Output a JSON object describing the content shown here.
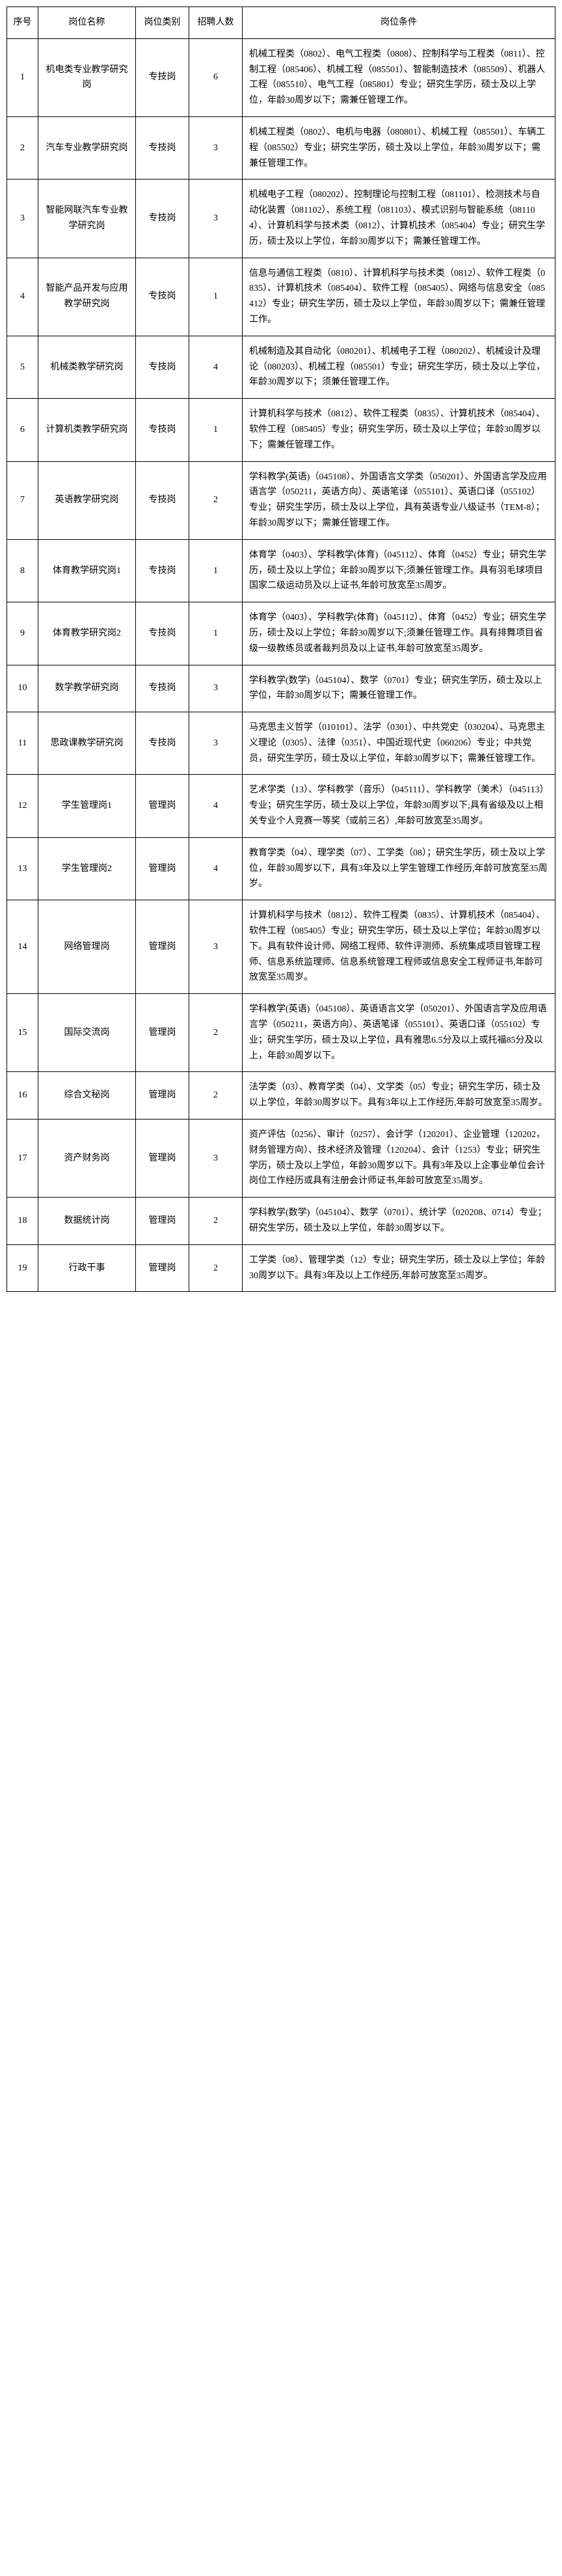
{
  "headers": {
    "seq": "序号",
    "name": "岗位名称",
    "category": "岗位类别",
    "count": "招聘人数",
    "requirements": "岗位条件"
  },
  "rows": [
    {
      "seq": "1",
      "name": "机电类专业教学研究岗",
      "category": "专技岗",
      "count": "6",
      "req": "机械工程类（0802）、电气工程类（0808）、控制科学与工程类（0811）、控制工程（085406）、机械工程（085501）、智能制造技术（085509）、机器人工程（085510）、电气工程（085801）专业；研究生学历，硕士及以上学位，年龄30周岁以下；需兼任管理工作。"
    },
    {
      "seq": "2",
      "name": "汽车专业教学研究岗",
      "category": "专技岗",
      "count": "3",
      "req": "机械工程类（0802）、电机与电器（080801）、机械工程（085501）、车辆工程（085502）专业；研究生学历，硕士及以上学位，年龄30周岁以下；需兼任管理工作。"
    },
    {
      "seq": "3",
      "name": "智能网联汽车专业教学研究岗",
      "category": "专技岗",
      "count": "3",
      "req": "机械电子工程（080202）、控制理论与控制工程（081101）、检测技术与自动化装置（081102）、系统工程（081103）、模式识别与智能系统（081104）、计算机科学与技术类（0812）、计算机技术（085404）专业；研究生学历，硕士及以上学位，年龄30周岁以下；需兼任管理工作。"
    },
    {
      "seq": "4",
      "name": "智能产品开发与应用教学研究岗",
      "category": "专技岗",
      "count": "1",
      "req": "信息与通信工程类（0810）、计算机科学与技术类（0812）、软件工程类（0835）、计算机技术（085404）、软件工程（085405）、网络与信息安全（085412）专业；研究生学历，硕士及以上学位，年龄30周岁以下；需兼任管理工作。"
    },
    {
      "seq": "5",
      "name": "机械类教学研究岗",
      "category": "专技岗",
      "count": "4",
      "req": "机械制造及其自动化（080201）、机械电子工程（080202）、机械设计及理论（080203）、机械工程（085501）专业；研究生学历，硕士及以上学位，年龄30周岁以下；须兼任管理工作。"
    },
    {
      "seq": "6",
      "name": "计算机类教学研究岗",
      "category": "专技岗",
      "count": "1",
      "req": "计算机科学与技术（0812）、软件工程类（0835）、计算机技术（085404）、软件工程（085405）专业；研究生学历，硕士及以上学位；年龄30周岁以下；需兼任管理工作。"
    },
    {
      "seq": "7",
      "name": "英语教学研究岗",
      "category": "专技岗",
      "count": "2",
      "req": "学科教学(英语)（045108）、外国语言文学类（050201）、外国语言学及应用语言学（050211，英语方向）、英语笔译（055101）、英语口译（055102）专业；研究生学历，硕士及以上学位，具有英语专业八级证书（TEM-8）；年龄30周岁以下；需兼任管理工作。"
    },
    {
      "seq": "8",
      "name": "体育教学研究岗1",
      "category": "专技岗",
      "count": "1",
      "req": "体育学（0403）、学科教学(体育)（045112）、体育（0452）专业；研究生学历，硕士及以上学位；年龄30周岁以下;须兼任管理工作。具有羽毛球项目国家二级运动员及以上证书,年龄可放宽至35周岁。"
    },
    {
      "seq": "9",
      "name": "体育教学研究岗2",
      "category": "专技岗",
      "count": "1",
      "req": "体育学（0403）、学科教学(体育)（045112）、体育（0452）专业；研究生学历，硕士及以上学位；年龄30周岁以下;须兼任管理工作。具有排舞项目省级一级教练员或者裁判员及以上证书,年龄可放宽至35周岁。"
    },
    {
      "seq": "10",
      "name": "数学教学研究岗",
      "category": "专技岗",
      "count": "3",
      "req": "学科教学(数学)（045104）、数学（0701）专业；研究生学历，硕士及以上学位，年龄30周岁以下；需兼任管理工作。"
    },
    {
      "seq": "11",
      "name": "思政课教学研究岗",
      "category": "专技岗",
      "count": "3",
      "req": "马克思主义哲学（010101）、法学（0301）、中共党史（030204）、马克思主义理论（0305）、法律（0351）、中国近现代史（060206）专业；中共党员，研究生学历，硕士及以上学位，年龄30周岁以下；需兼任管理工作。"
    },
    {
      "seq": "12",
      "name": "学生管理岗1",
      "category": "管理岗",
      "count": "4",
      "req": "艺术学类（13）、学科教学（音乐）（045111）、学科教学（美术）（045113）专业；研究生学历，硕士及以上学位，年龄30周岁以下;具有省级及以上相关专业个人竞赛一等奖（或前三名）,年龄可放宽至35周岁。"
    },
    {
      "seq": "13",
      "name": "学生管理岗2",
      "category": "管理岗",
      "count": "4",
      "req": "教育学类（04）、理学类（07）、工学类（08）；研究生学历，硕士及以上学位，年龄30周岁以下，具有3年及以上学生管理工作经历,年龄可放宽至35周岁。"
    },
    {
      "seq": "14",
      "name": "网络管理岗",
      "category": "管理岗",
      "count": "3",
      "req": "计算机科学与技术（0812）、软件工程类（0835）、计算机技术（085404）、软件工程（085405）专业；研究生学历，硕士及以上学位；年龄30周岁以下。具有软件设计师、网络工程师、软件评测师、系统集成项目管理工程师、信息系统监理师、信息系统管理工程师或信息安全工程师证书,年龄可放宽至35周岁。"
    },
    {
      "seq": "15",
      "name": "国际交流岗",
      "category": "管理岗",
      "count": "2",
      "req": "学科教学(英语)（045108）、英语语言文学（050201）、外国语言学及应用语言学（050211，英语方向）、英语笔译（055101）、英语口译（055102）专业；研究生学历，硕士及以上学位，具有雅思6.5分及以上或托福85分及以上，年龄30周岁以下。"
    },
    {
      "seq": "16",
      "name": "综合文秘岗",
      "category": "管理岗",
      "count": "2",
      "req": "法学类（03）、教育学类（04）、文学类（05）专业；研究生学历，硕士及以上学位，年龄30周岁以下。具有3年以上工作经历,年龄可放宽至35周岁。"
    },
    {
      "seq": "17",
      "name": "资产财务岗",
      "category": "管理岗",
      "count": "3",
      "req": "资产评估（0256）、审计（0257）、会计学（120201）、企业管理（120202，财务管理方向）、技术经济及管理（120204）、会计（1253）专业；研究生学历，硕士及以上学位，年龄30周岁以下。具有3年及以上企事业单位会计岗位工作经历或具有注册会计师证书,年龄可放宽至35周岁。"
    },
    {
      "seq": "18",
      "name": "数据统计岗",
      "category": "管理岗",
      "count": "2",
      "req": "学科教学(数学)（045104）、数学（0701）、统计学（020208、0714）专业；研究生学历，硕士及以上学位，年龄30周岁以下。"
    },
    {
      "seq": "19",
      "name": "行政干事",
      "category": "管理岗",
      "count": "2",
      "req": "工学类（08）、管理学类（12）专业；研究生学历，硕士及以上学位；年龄30周岁以下。具有3年及以上工作经历,年龄可放宽至35周岁。"
    }
  ]
}
